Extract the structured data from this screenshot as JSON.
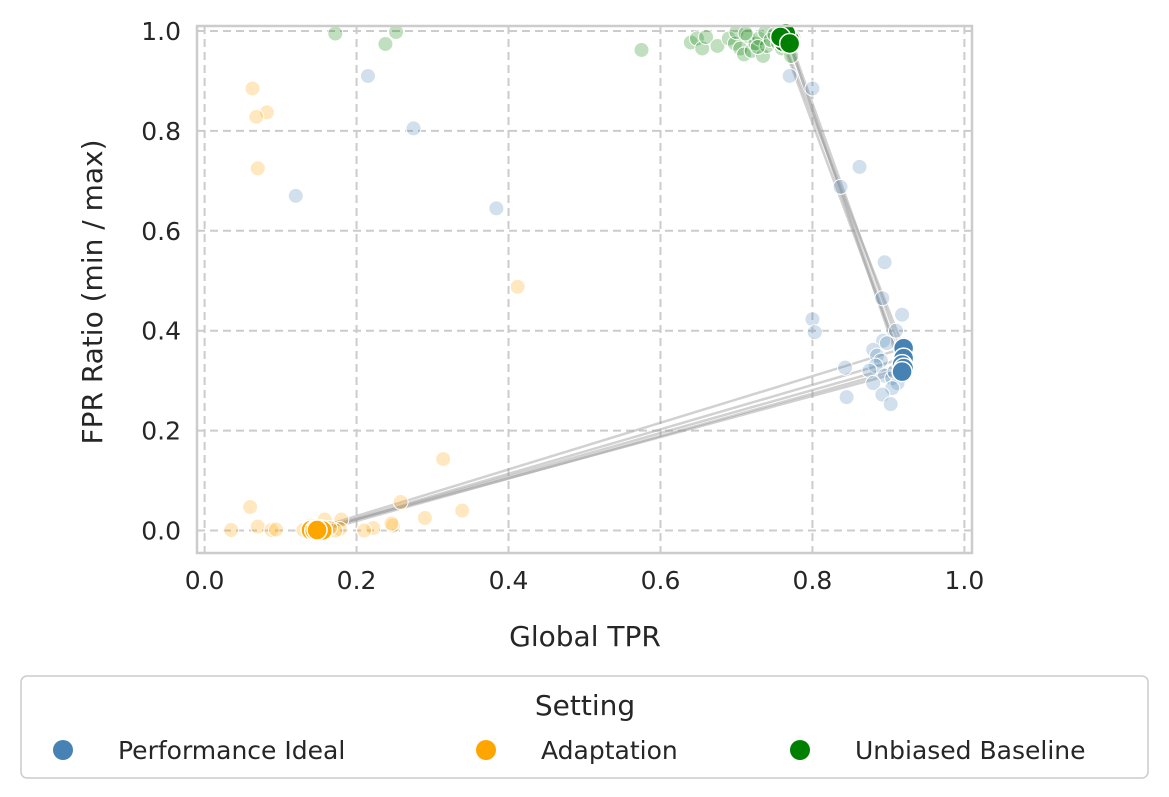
{
  "chart_data": {
    "type": "scatter",
    "xlabel": "Global TPR",
    "ylabel": "FPR Ratio (min / max)",
    "xlim": [
      -0.01,
      1.01
    ],
    "ylim": [
      -0.045,
      1.01
    ],
    "x_ticks": [
      0.0,
      0.2,
      0.4,
      0.6,
      0.8,
      1.0
    ],
    "y_ticks": [
      0.0,
      0.2,
      0.4,
      0.6,
      0.8,
      1.0
    ],
    "x_tick_labels": [
      "0.0",
      "0.2",
      "0.4",
      "0.6",
      "0.8",
      "1.0"
    ],
    "y_tick_labels": [
      "0.0",
      "0.2",
      "0.4",
      "0.6",
      "0.8",
      "1.0"
    ],
    "grid": true,
    "legend": {
      "title": "Setting",
      "placement": "bottom-center",
      "entries": [
        "Performance Ideal",
        "Adaptation",
        "Unbiased Baseline"
      ]
    },
    "colors": {
      "Performance Ideal": "#4682b4",
      "Adaptation": "#ffa500",
      "Unbiased Baseline": "#008000",
      "connector": "#999999"
    },
    "series": [
      {
        "name": "Performance Ideal",
        "background_points": [
          [
            0.215,
            0.91
          ],
          [
            0.275,
            0.805
          ],
          [
            0.12,
            0.67
          ],
          [
            0.384,
            0.645
          ],
          [
            0.77,
            0.91
          ],
          [
            0.8,
            0.885
          ],
          [
            0.862,
            0.728
          ],
          [
            0.837,
            0.688
          ],
          [
            0.895,
            0.537
          ],
          [
            0.892,
            0.465
          ],
          [
            0.8,
            0.423
          ],
          [
            0.803,
            0.397
          ],
          [
            0.918,
            0.432
          ],
          [
            0.91,
            0.4
          ],
          [
            0.893,
            0.38
          ],
          [
            0.898,
            0.375
          ],
          [
            0.88,
            0.362
          ],
          [
            0.885,
            0.35
          ],
          [
            0.89,
            0.34
          ],
          [
            0.883,
            0.33
          ],
          [
            0.875,
            0.32
          ],
          [
            0.895,
            0.31
          ],
          [
            0.905,
            0.305
          ],
          [
            0.88,
            0.295
          ],
          [
            0.912,
            0.295
          ],
          [
            0.905,
            0.285
          ],
          [
            0.892,
            0.272
          ],
          [
            0.843,
            0.326
          ],
          [
            0.845,
            0.267
          ],
          [
            0.903,
            0.253
          ],
          [
            0.915,
            0.33
          ],
          [
            0.908,
            0.318
          ]
        ],
        "mean_points": [
          [
            0.92,
            0.365
          ],
          [
            0.92,
            0.345
          ],
          [
            0.918,
            0.332
          ],
          [
            0.92,
            0.325
          ],
          [
            0.918,
            0.318
          ]
        ]
      },
      {
        "name": "Adaptation",
        "background_points": [
          [
            0.063,
            0.885
          ],
          [
            0.082,
            0.837
          ],
          [
            0.068,
            0.828
          ],
          [
            0.07,
            0.725
          ],
          [
            0.412,
            0.488
          ],
          [
            0.314,
            0.143
          ],
          [
            0.339,
            0.04
          ],
          [
            0.29,
            0.025
          ],
          [
            0.258,
            0.057
          ],
          [
            0.248,
            0.01
          ],
          [
            0.246,
            0.014
          ],
          [
            0.222,
            0.005
          ],
          [
            0.21,
            0.0
          ],
          [
            0.18,
            0.022
          ],
          [
            0.178,
            0.003
          ],
          [
            0.172,
            0.0
          ],
          [
            0.158,
            0.022
          ],
          [
            0.155,
            0.003
          ],
          [
            0.06,
            0.047
          ],
          [
            0.07,
            0.008
          ],
          [
            0.035,
            0.001
          ],
          [
            0.088,
            0.001
          ],
          [
            0.094,
            0.002
          ],
          [
            0.13,
            0.001
          ],
          [
            0.165,
            0.005
          ],
          [
            0.14,
            0.01
          ]
        ],
        "mean_points": [
          [
            0.14,
            0.001
          ],
          [
            0.145,
            0.0
          ],
          [
            0.152,
            0.002
          ],
          [
            0.155,
            0.0
          ],
          [
            0.148,
            0.001
          ]
        ]
      },
      {
        "name": "Unbiased Baseline",
        "background_points": [
          [
            0.172,
            0.995
          ],
          [
            0.238,
            0.974
          ],
          [
            0.252,
            0.998
          ],
          [
            0.575,
            0.962
          ],
          [
            0.64,
            0.977
          ],
          [
            0.648,
            0.985
          ],
          [
            0.655,
            0.965
          ],
          [
            0.66,
            0.988
          ],
          [
            0.675,
            0.97
          ],
          [
            0.69,
            0.985
          ],
          [
            0.698,
            0.975
          ],
          [
            0.7,
            0.998
          ],
          [
            0.705,
            0.965
          ],
          [
            0.71,
            0.953
          ],
          [
            0.715,
            0.99
          ],
          [
            0.72,
            0.96
          ],
          [
            0.725,
            0.975
          ],
          [
            0.73,
            0.985
          ],
          [
            0.735,
            0.95
          ],
          [
            0.738,
            0.998
          ],
          [
            0.74,
            0.97
          ],
          [
            0.745,
            0.982
          ],
          [
            0.75,
            0.993
          ],
          [
            0.755,
            0.975
          ],
          [
            0.76,
            0.965
          ],
          [
            0.765,
            0.998
          ],
          [
            0.772,
            0.95
          ],
          [
            0.775,
            0.987
          ],
          [
            0.712,
            0.995
          ],
          [
            0.728,
            0.968
          ]
        ],
        "mean_points": [
          [
            0.762,
            0.978
          ],
          [
            0.77,
            0.983
          ],
          [
            0.765,
            0.995
          ],
          [
            0.758,
            0.988
          ],
          [
            0.77,
            0.975
          ]
        ]
      }
    ]
  }
}
